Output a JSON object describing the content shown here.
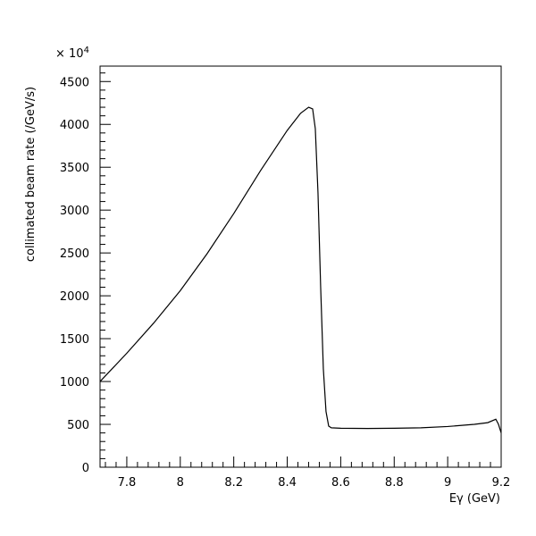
{
  "chart_data": {
    "type": "line",
    "xlabel": "Eγ (GeV)",
    "ylabel": "collimated beam rate (/GeV/s)",
    "y_multiplier": {
      "base": "× 10",
      "exponent": "4"
    },
    "xlim": [
      7.7,
      9.2
    ],
    "ylim": [
      0,
      4680
    ],
    "x_ticks": [
      7.8,
      8.0,
      8.2,
      8.4,
      8.6,
      8.8,
      9.0,
      9.2
    ],
    "x_tick_labels": [
      "7.8",
      "8",
      "8.2",
      "8.4",
      "8.6",
      "8.8",
      "9",
      "9.2"
    ],
    "y_ticks": [
      0,
      500,
      1000,
      1500,
      2000,
      2500,
      3000,
      3500,
      4000,
      4500
    ],
    "y_tick_labels": [
      "0",
      "500",
      "1000",
      "1500",
      "2000",
      "2500",
      "3000",
      "3500",
      "4000",
      "4500"
    ],
    "grid": false,
    "series": [
      {
        "x": [
          7.7,
          7.8,
          7.9,
          8.0,
          8.1,
          8.2,
          8.3,
          8.4,
          8.45,
          8.48,
          8.495,
          8.505,
          8.515,
          8.525,
          8.535,
          8.545,
          8.555,
          8.565,
          8.6,
          8.7,
          8.8,
          8.9,
          9.0,
          9.1,
          9.15,
          9.18,
          9.19,
          9.2
        ],
        "y": [
          1000,
          1330,
          1680,
          2060,
          2490,
          2960,
          3460,
          3930,
          4130,
          4200,
          4180,
          3950,
          3200,
          2100,
          1150,
          650,
          480,
          460,
          455,
          452,
          455,
          460,
          475,
          500,
          520,
          560,
          500,
          400
        ]
      }
    ]
  }
}
